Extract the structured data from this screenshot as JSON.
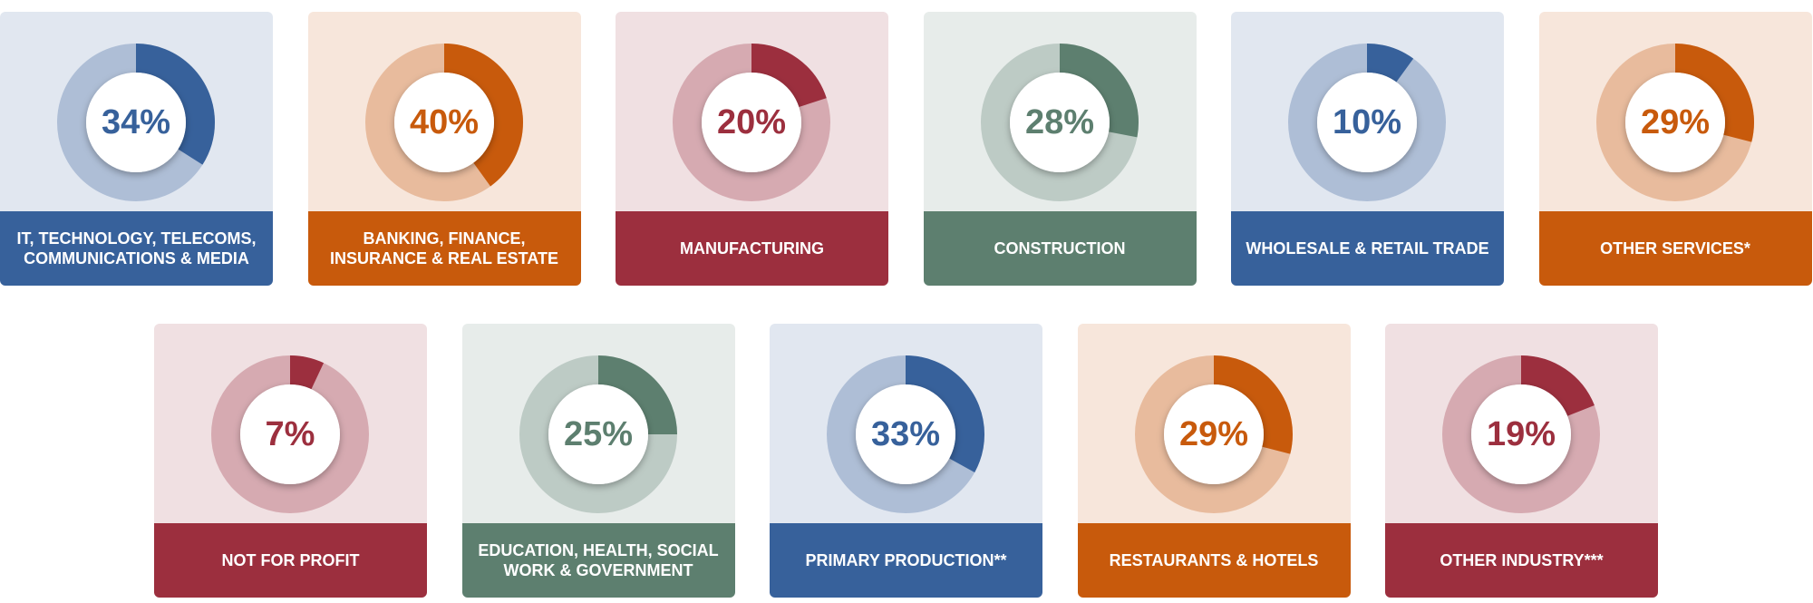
{
  "chart_data": [
    {
      "type": "donut",
      "categories": [
        "IT, TECHNOLOGY, TELECOMS, COMMUNICATIONS & MEDIA"
      ],
      "values": [
        34
      ],
      "value_labels": [
        "34%"
      ],
      "color": "#37619b"
    },
    {
      "type": "donut",
      "categories": [
        "BANKING, FINANCE, INSURANCE & REAL ESTATE"
      ],
      "values": [
        40
      ],
      "value_labels": [
        "40%"
      ],
      "color": "#c85a0c"
    },
    {
      "type": "donut",
      "categories": [
        "MANUFACTURING"
      ],
      "values": [
        20
      ],
      "value_labels": [
        "20%"
      ],
      "color": "#9c2f3e"
    },
    {
      "type": "donut",
      "categories": [
        "CONSTRUCTION"
      ],
      "values": [
        28
      ],
      "value_labels": [
        "28%"
      ],
      "color": "#5d7f6f"
    },
    {
      "type": "donut",
      "categories": [
        "WHOLESALE & RETAIL TRADE"
      ],
      "values": [
        10
      ],
      "value_labels": [
        "10%"
      ],
      "color": "#37619b"
    },
    {
      "type": "donut",
      "categories": [
        "OTHER SERVICES*"
      ],
      "values": [
        29
      ],
      "value_labels": [
        "29%"
      ],
      "color": "#c85a0c"
    },
    {
      "type": "donut",
      "categories": [
        "NOT FOR PROFIT"
      ],
      "values": [
        7
      ],
      "value_labels": [
        "7%"
      ],
      "color": "#9c2f3e"
    },
    {
      "type": "donut",
      "categories": [
        "EDUCATION, HEALTH, SOCIAL WORK & GOVERNMENT"
      ],
      "values": [
        25
      ],
      "value_labels": [
        "25%"
      ],
      "color": "#5d7f6f"
    },
    {
      "type": "donut",
      "categories": [
        "PRIMARY PRODUCTION**"
      ],
      "values": [
        33
      ],
      "value_labels": [
        "33%"
      ],
      "color": "#37619b"
    },
    {
      "type": "donut",
      "categories": [
        "RESTAURANTS & HOTELS"
      ],
      "values": [
        29
      ],
      "value_labels": [
        "29%"
      ],
      "color": "#c85a0c"
    },
    {
      "type": "donut",
      "categories": [
        "OTHER INDUSTRY***"
      ],
      "values": [
        19
      ],
      "value_labels": [
        "19%"
      ],
      "color": "#9c2f3e"
    }
  ]
}
